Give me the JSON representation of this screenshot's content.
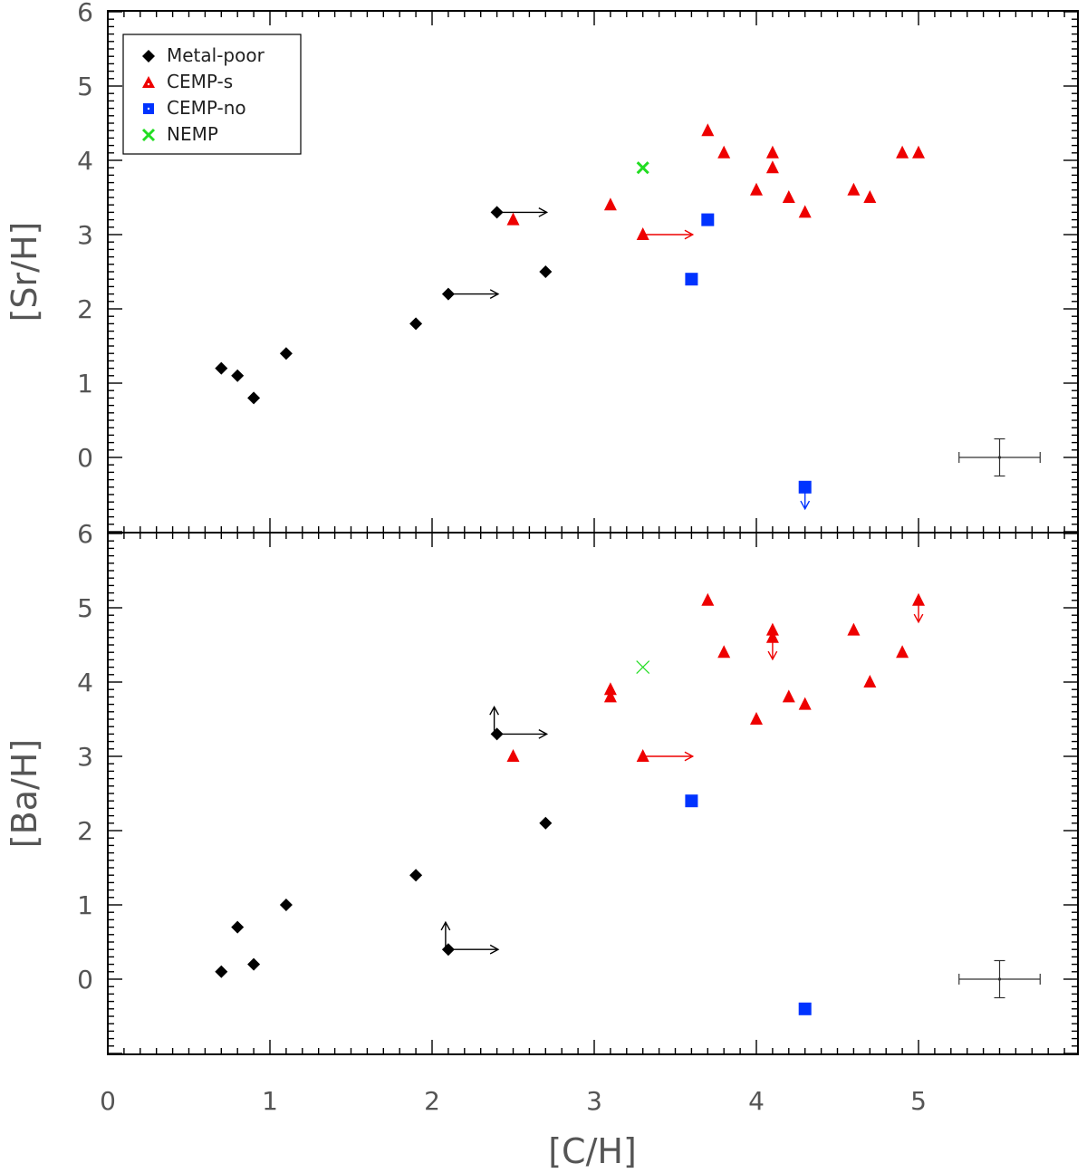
{
  "colors": {
    "metal_poor": "#000000",
    "cemp_s": "#ee0000",
    "cemp_no": "#0033ff",
    "nemp": "#22dd22",
    "axes": "#000000",
    "labels": "#555555"
  },
  "chart_data": [
    {
      "type": "scatter",
      "panel": "top",
      "ylabel": "[Sr/H]",
      "xlabel": "[C/H]",
      "xlim": [
        0,
        6
      ],
      "ylim": [
        -1,
        6
      ],
      "x_ticks": [
        0,
        1,
        2,
        3,
        4,
        5
      ],
      "y_ticks": [
        0,
        1,
        2,
        3,
        4,
        5,
        6
      ],
      "legend": {
        "placement": "top-left",
        "entries": [
          {
            "name": "Metal-poor",
            "marker": "diamond",
            "series_key": "metal_poor"
          },
          {
            "name": "CEMP-s",
            "marker": "triangle",
            "series_key": "cemp_s"
          },
          {
            "name": "CEMP-no",
            "marker": "square",
            "series_key": "cemp_no"
          },
          {
            "name": "NEMP",
            "marker": "cross",
            "series_key": "nemp"
          }
        ]
      },
      "series": [
        {
          "key": "metal_poor",
          "name": "Metal-poor",
          "marker": "diamond",
          "points": [
            {
              "x": 0.7,
              "y": 1.2
            },
            {
              "x": 0.8,
              "y": 1.1
            },
            {
              "x": 0.9,
              "y": 0.8
            },
            {
              "x": 1.1,
              "y": 1.4
            },
            {
              "x": 1.9,
              "y": 1.8
            },
            {
              "x": 2.1,
              "y": 2.2,
              "limits": [
                "right"
              ]
            },
            {
              "x": 2.4,
              "y": 3.3,
              "limits": [
                "right"
              ]
            },
            {
              "x": 2.7,
              "y": 2.5
            }
          ]
        },
        {
          "key": "cemp_s",
          "name": "CEMP-s",
          "marker": "triangle",
          "points": [
            {
              "x": 2.5,
              "y": 3.2
            },
            {
              "x": 3.1,
              "y": 3.4
            },
            {
              "x": 3.3,
              "y": 3.0,
              "limits": [
                "right"
              ]
            },
            {
              "x": 3.7,
              "y": 4.4
            },
            {
              "x": 3.8,
              "y": 4.1
            },
            {
              "x": 4.0,
              "y": 3.6
            },
            {
              "x": 4.1,
              "y": 4.1
            },
            {
              "x": 4.1,
              "y": 3.9
            },
            {
              "x": 4.2,
              "y": 3.5
            },
            {
              "x": 4.3,
              "y": 3.3
            },
            {
              "x": 4.6,
              "y": 3.6
            },
            {
              "x": 4.7,
              "y": 3.5
            },
            {
              "x": 4.9,
              "y": 4.1
            },
            {
              "x": 5.0,
              "y": 4.1
            }
          ]
        },
        {
          "key": "cemp_no",
          "name": "CEMP-no",
          "marker": "square",
          "points": [
            {
              "x": 3.6,
              "y": 2.4
            },
            {
              "x": 3.7,
              "y": 3.2
            },
            {
              "x": 4.3,
              "y": -0.4,
              "limits": [
                "down"
              ]
            }
          ]
        },
        {
          "key": "nemp",
          "name": "NEMP",
          "marker": "cross",
          "points": [
            {
              "x": 3.3,
              "y": 3.9
            }
          ]
        }
      ],
      "error_bar": {
        "x": 5.5,
        "y": 0.0,
        "xerr": 0.25,
        "yerr": 0.25
      }
    },
    {
      "type": "scatter",
      "panel": "bottom",
      "ylabel": "[Ba/H]",
      "xlabel": "[C/H]",
      "xlim": [
        0,
        6
      ],
      "ylim": [
        -1,
        6
      ],
      "x_ticks": [
        0,
        1,
        2,
        3,
        4,
        5
      ],
      "y_ticks": [
        0,
        1,
        2,
        3,
        4,
        5,
        6
      ],
      "series": [
        {
          "key": "metal_poor",
          "name": "Metal-poor",
          "marker": "diamond",
          "points": [
            {
              "x": 0.7,
              "y": 0.1
            },
            {
              "x": 0.8,
              "y": 0.7
            },
            {
              "x": 0.9,
              "y": 0.2
            },
            {
              "x": 1.1,
              "y": 1.0
            },
            {
              "x": 1.9,
              "y": 1.4
            },
            {
              "x": 2.1,
              "y": 0.4,
              "limits": [
                "right",
                "up"
              ]
            },
            {
              "x": 2.4,
              "y": 3.3,
              "limits": [
                "right",
                "up"
              ]
            },
            {
              "x": 2.7,
              "y": 2.1
            }
          ]
        },
        {
          "key": "cemp_s",
          "name": "CEMP-s",
          "marker": "triangle",
          "points": [
            {
              "x": 2.5,
              "y": 3.0
            },
            {
              "x": 3.1,
              "y": 3.9
            },
            {
              "x": 3.1,
              "y": 3.8
            },
            {
              "x": 3.3,
              "y": 3.0,
              "limits": [
                "right"
              ]
            },
            {
              "x": 3.7,
              "y": 5.1
            },
            {
              "x": 3.8,
              "y": 4.4
            },
            {
              "x": 4.0,
              "y": 3.5
            },
            {
              "x": 4.1,
              "y": 4.7
            },
            {
              "x": 4.1,
              "y": 4.6,
              "limits": [
                "down"
              ]
            },
            {
              "x": 4.2,
              "y": 3.8
            },
            {
              "x": 4.3,
              "y": 3.7
            },
            {
              "x": 4.6,
              "y": 4.7
            },
            {
              "x": 4.7,
              "y": 4.0
            },
            {
              "x": 4.9,
              "y": 4.4
            },
            {
              "x": 5.0,
              "y": 5.1,
              "limits": [
                "down"
              ]
            }
          ]
        },
        {
          "key": "cemp_no",
          "name": "CEMP-no",
          "marker": "square",
          "points": [
            {
              "x": 3.6,
              "y": 2.4
            },
            {
              "x": 4.3,
              "y": -0.4
            }
          ]
        },
        {
          "key": "nemp",
          "name": "NEMP",
          "marker": "cross",
          "thin": true,
          "points": [
            {
              "x": 3.3,
              "y": 4.2
            }
          ]
        }
      ],
      "error_bar": {
        "x": 5.5,
        "y": 0.0,
        "xerr": 0.25,
        "yerr": 0.25
      }
    }
  ]
}
